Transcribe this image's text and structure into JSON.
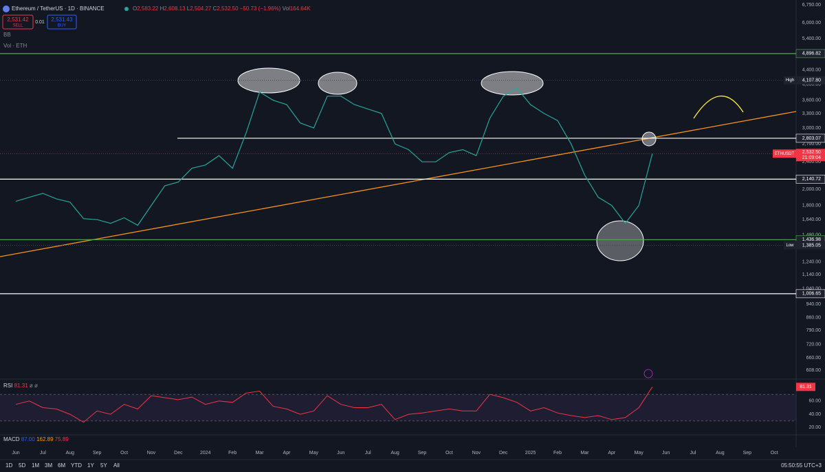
{
  "header": {
    "symbol": "Ethereum / TetherUS · 1D · BINANCE",
    "open_label": "O",
    "open": "2,583.22",
    "high_label": "H",
    "high": "2,608.13",
    "low_label": "L",
    "low": "2,504.27",
    "close_label": "C",
    "close": "2,532.50",
    "change": "−50.73 (−1.96%)",
    "volume_label": "Vol",
    "volume": "164.64K"
  },
  "trade": {
    "sell_price": "2,531.42",
    "sell": "SELL",
    "quantity": "0.01",
    "buy_price": "2,531.43",
    "buy": "BUY"
  },
  "indicators": [
    "BB",
    "Vol · ETH"
  ],
  "chart_data": [
    {
      "type": "line",
      "log_scale": true,
      "categories": [
        "Jun",
        null,
        "Jul",
        null,
        "Aug",
        null,
        "Sep",
        null,
        "Oct",
        null,
        "Nov",
        null,
        "Dec",
        null,
        "2024",
        null,
        "Feb",
        null,
        "Mar",
        null,
        "Apr",
        null,
        "May",
        null,
        "Jun",
        null,
        "Jul",
        null,
        "Aug",
        null,
        "Sep",
        null,
        "Oct",
        null,
        "Nov",
        null,
        "Dec",
        null,
        "2025",
        null,
        "Feb",
        null,
        "Mar",
        null,
        "Apr",
        null,
        "May",
        null,
        "Jun",
        null,
        "Jul",
        null,
        "Aug",
        null,
        "Sep",
        null,
        "Oct"
      ],
      "series": [
        {
          "name": "ETHUSDT",
          "color": "#26a69a",
          "values": [
            1850,
            1900,
            1950,
            1880,
            1840,
            1650,
            1640,
            1600,
            1660,
            1580,
            1800,
            2050,
            2100,
            2300,
            2350,
            2500,
            2300,
            2900,
            3800,
            3600,
            3500,
            3100,
            3000,
            3700,
            3700,
            3500,
            3400,
            3300,
            2700,
            2600,
            2400,
            2400,
            2550,
            2600,
            2500,
            3200,
            3700,
            3900,
            3500,
            3300,
            3150,
            2700,
            2200,
            1900,
            1800,
            1600,
            1800,
            2532.5,
            null,
            null,
            null,
            null,
            null,
            null,
            null,
            null,
            null
          ]
        }
      ],
      "ylim": [
        576,
        6970
      ],
      "yticks": [
        {
          "value": 6750,
          "label": "6,750.00"
        },
        {
          "value": 6000,
          "label": "6,000.00"
        },
        {
          "value": 5400,
          "label": "5,400.00"
        },
        {
          "value": 4400,
          "label": "4,400.00"
        },
        {
          "value": 4000,
          "label": "4,000.00"
        },
        {
          "value": 3600,
          "label": "3,600.00"
        },
        {
          "value": 3300,
          "label": "3,300.00"
        },
        {
          "value": 3000,
          "label": "3,000.00"
        },
        {
          "value": 2700,
          "label": "2,700.00"
        },
        {
          "value": 2400,
          "label": "2,400.00"
        },
        {
          "value": 2000,
          "label": "2,000.00"
        },
        {
          "value": 1800,
          "label": "1,800.00"
        },
        {
          "value": 1640,
          "label": "1,640.00"
        },
        {
          "value": 1480,
          "label": "1,480.00"
        },
        {
          "value": 1240,
          "label": "1,240.00"
        },
        {
          "value": 1140,
          "label": "1,140.00"
        },
        {
          "value": 1040,
          "label": "1,040.00"
        },
        {
          "value": 940,
          "label": "940.00"
        },
        {
          "value": 860,
          "label": "860.00"
        },
        {
          "value": 790,
          "label": "790.00"
        },
        {
          "value": 720,
          "label": "720.00"
        },
        {
          "value": 660,
          "label": "660.00"
        },
        {
          "value": 608,
          "label": "608.00"
        }
      ],
      "levels": [
        {
          "value": 4896.82,
          "label": "4,896.82",
          "color": "#4caf50"
        },
        {
          "value": 2803.07,
          "label": "2,803.07",
          "color": "#ffffff"
        },
        {
          "value": 2140.72,
          "label": "2,140.72",
          "color": "#ffffff"
        },
        {
          "value": 1436.98,
          "label": "1,436.98",
          "color": "#4caf50"
        },
        {
          "value": 1006.65,
          "label": "1,006.65",
          "color": "#ffffff"
        }
      ],
      "high": {
        "name": "High",
        "value": 4107.8,
        "label": "4,107.80"
      },
      "low": {
        "name": "Low",
        "value": 1385.05,
        "label": "1,385.05"
      },
      "last": {
        "value": 2532.5,
        "label": "2,532.50",
        "countdown": "21:09:04"
      }
    },
    {
      "type": "line",
      "title": "RSI",
      "settings": "ø ø",
      "series": [
        {
          "name": "RSI",
          "color": "#f23645",
          "values": [
            55,
            60,
            50,
            48,
            40,
            28,
            45,
            40,
            55,
            48,
            68,
            65,
            62,
            66,
            55,
            60,
            58,
            72,
            75,
            52,
            48,
            40,
            45,
            68,
            55,
            50,
            50,
            55,
            32,
            40,
            42,
            45,
            48,
            45,
            45,
            70,
            65,
            58,
            45,
            50,
            42,
            38,
            35,
            38,
            32,
            35,
            50,
            81.31,
            null,
            null,
            null,
            null,
            null,
            null,
            null,
            null,
            null
          ]
        }
      ],
      "ylim": [
        9,
        92
      ],
      "yticks": [
        {
          "value": 20,
          "label": "20.00"
        },
        {
          "value": 40,
          "label": "40.00"
        },
        {
          "value": 60,
          "label": "60.00"
        }
      ],
      "band": [
        30,
        70
      ],
      "last": {
        "value": 81.31,
        "label": "81.31"
      }
    }
  ],
  "macd": {
    "name": "MACD",
    "values": [
      "87.00",
      "162.89",
      "75.89"
    ]
  },
  "toolbar": {
    "ranges": [
      "1D",
      "5D",
      "1M",
      "3M",
      "6M",
      "YTD",
      "1Y",
      "5Y",
      "All"
    ],
    "clock": "05:50:55 UTC+3"
  }
}
